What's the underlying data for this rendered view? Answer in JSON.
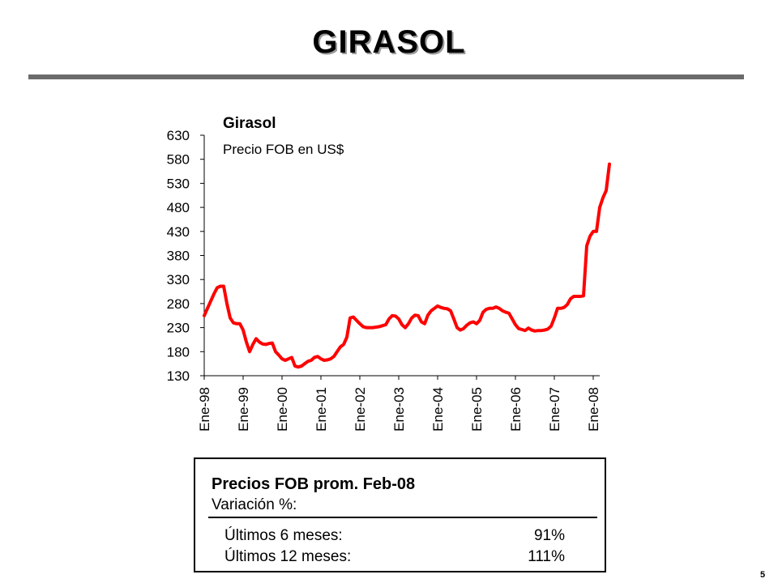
{
  "slide": {
    "title": "GIRASOL",
    "page_number": "5"
  },
  "colors": {
    "line": "#ff0000",
    "title_rule": "#6b6b6b"
  },
  "chart_data": {
    "type": "line",
    "title": "Girasol",
    "subtitle": "Precio FOB en US$",
    "xlabel": "",
    "ylabel": "",
    "ylim": [
      130,
      630
    ],
    "yticks": [
      130,
      180,
      230,
      280,
      330,
      380,
      430,
      480,
      530,
      580,
      630
    ],
    "xticks": [
      "Ene-98",
      "Ene-99",
      "Ene-00",
      "Ene-01",
      "Ene-02",
      "Ene-03",
      "Ene-04",
      "Ene-05",
      "Ene-06",
      "Ene-07",
      "Ene-08"
    ],
    "grid": false,
    "legend": "none",
    "series": [
      {
        "values": [
          255,
          270,
          285,
          300,
          313,
          316,
          316,
          280,
          250,
          240,
          238,
          238,
          225,
          200,
          180,
          195,
          207,
          200,
          196,
          195,
          197,
          198,
          180,
          173,
          165,
          162,
          165,
          168,
          150,
          148,
          150,
          155,
          160,
          162,
          168,
          170,
          165,
          162,
          163,
          165,
          170,
          180,
          190,
          195,
          210,
          250,
          252,
          245,
          238,
          232,
          230,
          230,
          230,
          231,
          232,
          234,
          236,
          248,
          255,
          254,
          248,
          236,
          230,
          238,
          250,
          256,
          255,
          242,
          238,
          256,
          265,
          270,
          275,
          272,
          270,
          269,
          265,
          248,
          230,
          225,
          228,
          235,
          240,
          242,
          238,
          245,
          262,
          268,
          270,
          270,
          273,
          270,
          265,
          262,
          260,
          248,
          236,
          228,
          226,
          224,
          229,
          225,
          223,
          224,
          224,
          225,
          227,
          233,
          250,
          270,
          270,
          272,
          278,
          290,
          295,
          295,
          295,
          296,
          400,
          420,
          430,
          430,
          480,
          500,
          515,
          570
        ]
      }
    ]
  },
  "summary": {
    "heading": "Precios FOB prom. Feb-08",
    "subheading": "Variación %:",
    "rows": [
      {
        "label": "Últimos 6 meses:",
        "value": "91%"
      },
      {
        "label": "Últimos 12 meses:",
        "value": "111%"
      }
    ]
  }
}
